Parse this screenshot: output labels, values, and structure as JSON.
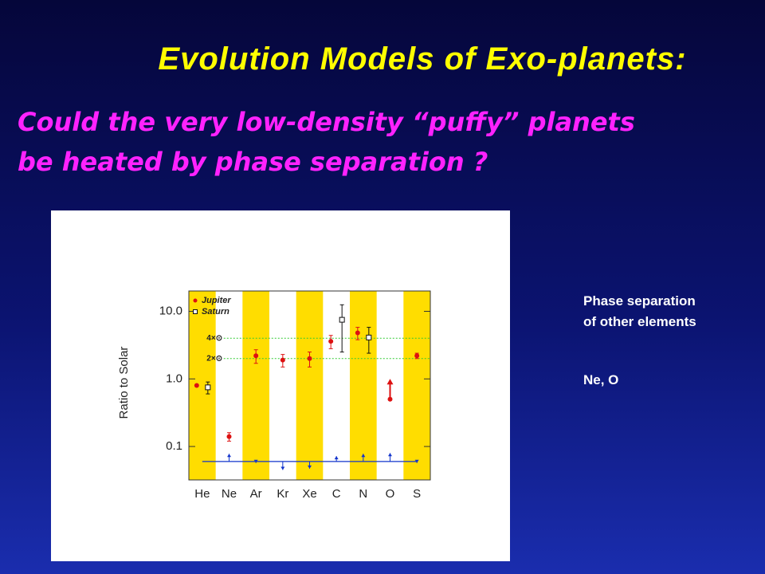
{
  "slide": {
    "title": "Evolution Models of Exo-planets:",
    "subtitle": [
      "Could the very low-density “puffy” planets",
      "be heated by phase separation ?"
    ],
    "notes": [
      "Phase separation",
      "of other elements",
      "Ne, O"
    ]
  },
  "chart_data": {
    "type": "scatter",
    "y_label": "Ratio to Solar",
    "log_y": true,
    "categories": [
      "He",
      "Ne",
      "Ar",
      "Kr",
      "Xe",
      "C",
      "N",
      "O",
      "S"
    ],
    "ylim": [
      0.032,
      20
    ],
    "yticks": [
      {
        "value": 10,
        "label": "10.0"
      },
      {
        "value": 1,
        "label": "1.0"
      },
      0.1
    ],
    "band_color": "#ffdd00",
    "legend": "top-left",
    "series": [
      {
        "name": "Jupiter",
        "color": "#dd1111",
        "marker": "dot",
        "values": [
          0.8,
          0.14,
          2.2,
          1.9,
          2.0,
          3.6,
          4.8,
          0.5,
          2.2
        ],
        "errors": [
          null,
          0.02,
          0.5,
          0.4,
          0.5,
          0.8,
          1.0,
          null,
          0.2
        ],
        "arrow_to": [
          null,
          null,
          null,
          null,
          null,
          null,
          null,
          1.0,
          null
        ]
      },
      {
        "name": "Saturn",
        "color": "#111111",
        "marker": "square",
        "values": [
          0.75,
          null,
          null,
          null,
          null,
          7.5,
          4.1,
          null,
          null
        ],
        "errors": [
          0.15,
          null,
          null,
          null,
          null,
          5,
          1.7,
          null,
          null
        ]
      },
      {
        "color": "#1133cc",
        "marker": "arrow",
        "base": 0.06,
        "values": [
          null,
          0.078,
          0.057,
          0.045,
          0.047,
          0.072,
          0.078,
          0.08,
          0.057
        ]
      }
    ],
    "annotations": [
      {
        "label": "4×⊙",
        "value": 4,
        "color": "#33cc33"
      },
      {
        "label": "2×⊙",
        "value": 2,
        "color": "#33cc33"
      }
    ]
  }
}
